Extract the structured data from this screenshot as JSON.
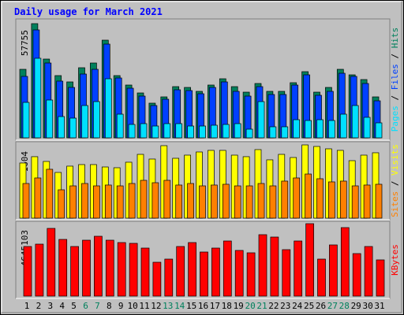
{
  "chart_data": [
    {
      "type": "bar",
      "title": "Daily usage for March 2021",
      "ylim": [
        0,
        57755
      ],
      "yticks": [
        57755
      ],
      "legend_separator": " / ",
      "series": [
        {
          "name": "Pages",
          "color": "#00e0ff",
          "values": [
            17920,
            40230,
            19120,
            10750,
            9960,
            16330,
            18320,
            29870,
            11950,
            6770,
            7170,
            5970,
            7170,
            7170,
            5970,
            5970,
            6370,
            6770,
            7170,
            4380,
            18320,
            5580,
            5580,
            9160,
            8760,
            9160,
            8760,
            11950,
            16330,
            10360,
            7570
          ]
        },
        {
          "name": "Files",
          "color": "#0040ff",
          "values": [
            31070,
            54570,
            37840,
            28680,
            25490,
            32260,
            34650,
            47400,
            30270,
            25090,
            21110,
            16330,
            19520,
            24300,
            23900,
            22300,
            25490,
            28280,
            23500,
            21110,
            25890,
            21910,
            21910,
            26690,
            31860,
            21510,
            23500,
            32660,
            31070,
            27480,
            18720
          ]
        },
        {
          "name": "Hits",
          "color": "#00805c",
          "values": [
            34650,
            57755,
            39830,
            31470,
            28280,
            35450,
            37840,
            49390,
            31470,
            26690,
            22700,
            17530,
            20710,
            25890,
            25490,
            23500,
            26690,
            29870,
            25890,
            23100,
            27480,
            23500,
            23500,
            27880,
            33460,
            23100,
            25490,
            34650,
            31860,
            29470,
            20710
          ]
        }
      ]
    },
    {
      "type": "bar",
      "ylim": [
        0,
        1604
      ],
      "yticks": [
        1604
      ],
      "legend_separator": " / ",
      "series": [
        {
          "name": "Sites",
          "color": "#ff8000",
          "values": [
            759,
            880,
            1070,
            621,
            707,
            759,
            707,
            725,
            707,
            759,
            828,
            776,
            828,
            725,
            759,
            707,
            725,
            742,
            707,
            707,
            759,
            707,
            811,
            880,
            966,
            863,
            794,
            811,
            707,
            725,
            742
          ]
        },
        {
          "name": "Visits",
          "color": "#ffff00",
          "values": [
            1208,
            1346,
            1242,
            1001,
            1139,
            1173,
            1173,
            1121,
            1104,
            1225,
            1397,
            1294,
            1587,
            1311,
            1380,
            1449,
            1484,
            1484,
            1380,
            1346,
            1501,
            1277,
            1397,
            1328,
            1604,
            1570,
            1518,
            1484,
            1259,
            1380,
            1432
          ]
        }
      ]
    },
    {
      "type": "bar",
      "ylim": [
        0,
        4645103
      ],
      "yticks": [
        4645103
      ],
      "categories": [
        "1",
        "2",
        "3",
        "4",
        "5",
        "6",
        "7",
        "8",
        "9",
        "10",
        "11",
        "12",
        "13",
        "14",
        "15",
        "16",
        "17",
        "18",
        "19",
        "20",
        "21",
        "22",
        "23",
        "24",
        "25",
        "26",
        "27",
        "28",
        "29",
        "30",
        "31"
      ],
      "category_colors": [
        "#000000",
        "#000000",
        "#000000",
        "#000000",
        "#000000",
        "#00805c",
        "#00805c",
        "#000000",
        "#000000",
        "#000000",
        "#000000",
        "#000000",
        "#00805c",
        "#00805c",
        "#000000",
        "#000000",
        "#000000",
        "#000000",
        "#000000",
        "#00805c",
        "#00805c",
        "#000000",
        "#000000",
        "#000000",
        "#000000",
        "#000000",
        "#00805c",
        "#00805c",
        "#000000",
        "#000000",
        "#000000"
      ],
      "series": [
        {
          "name": "KBytes",
          "color": "#ff0000",
          "values": [
            3180900,
            3332300,
            4342100,
            3635300,
            3180900,
            3584800,
            3837200,
            3584800,
            3433300,
            3382800,
            3079900,
            2171100,
            2373000,
            3180900,
            3433300,
            2827400,
            3079900,
            3534300,
            2928400,
            2777000,
            3938200,
            3786800,
            2978900,
            3534300,
            4645103,
            2373000,
            3281900,
            4392600,
            2726500,
            3180900,
            2322500
          ]
        }
      ]
    }
  ]
}
